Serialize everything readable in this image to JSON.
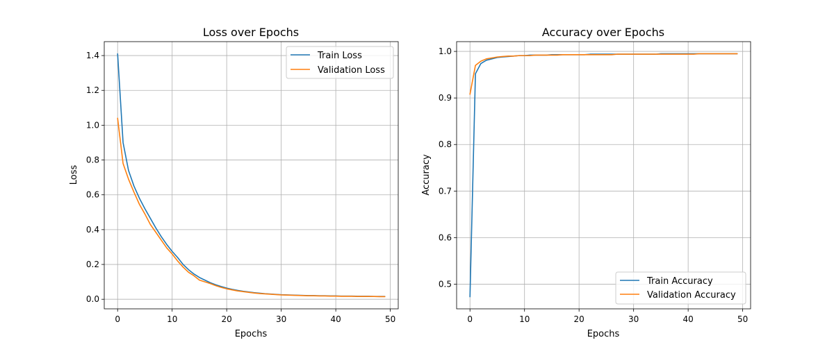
{
  "chart_data": [
    {
      "type": "line",
      "title": "Loss over Epochs",
      "xlabel": "Epochs",
      "ylabel": "Loss",
      "xlim": [
        -2.45,
        51.45
      ],
      "ylim": [
        -0.055,
        1.48
      ],
      "xticks": [
        0,
        10,
        20,
        30,
        40,
        50
      ],
      "yticks": [
        0.0,
        0.2,
        0.4,
        0.6,
        0.8,
        1.0,
        1.2,
        1.4
      ],
      "ytick_decimals": 1,
      "grid": true,
      "legend_position": "upper-right",
      "series": [
        {
          "name": "Train Loss",
          "color": "#1f77b4",
          "x": [
            0,
            1,
            2,
            3,
            4,
            5,
            6,
            7,
            8,
            9,
            10,
            11,
            12,
            13,
            14,
            15,
            16,
            17,
            18,
            19,
            20,
            21,
            22,
            23,
            24,
            25,
            26,
            27,
            28,
            29,
            30,
            31,
            32,
            33,
            34,
            35,
            36,
            37,
            38,
            39,
            40,
            41,
            42,
            43,
            44,
            45,
            46,
            47,
            48,
            49
          ],
          "y": [
            1.41,
            0.9,
            0.74,
            0.65,
            0.58,
            0.52,
            0.465,
            0.41,
            0.36,
            0.315,
            0.275,
            0.24,
            0.2,
            0.17,
            0.145,
            0.125,
            0.11,
            0.095,
            0.083,
            0.073,
            0.064,
            0.057,
            0.051,
            0.046,
            0.042,
            0.038,
            0.035,
            0.032,
            0.03,
            0.028,
            0.026,
            0.025,
            0.024,
            0.023,
            0.022,
            0.021,
            0.021,
            0.02,
            0.02,
            0.019,
            0.019,
            0.018,
            0.018,
            0.018,
            0.017,
            0.017,
            0.017,
            0.016,
            0.016,
            0.016
          ]
        },
        {
          "name": "Validation Loss",
          "color": "#ff7f0e",
          "x": [
            0,
            1,
            2,
            3,
            4,
            5,
            6,
            7,
            8,
            9,
            10,
            11,
            12,
            13,
            14,
            15,
            16,
            17,
            18,
            19,
            20,
            21,
            22,
            23,
            24,
            25,
            26,
            27,
            28,
            29,
            30,
            31,
            32,
            33,
            34,
            35,
            36,
            37,
            38,
            39,
            40,
            41,
            42,
            43,
            44,
            45,
            46,
            47,
            48,
            49
          ],
          "y": [
            1.04,
            0.78,
            0.69,
            0.615,
            0.545,
            0.49,
            0.43,
            0.385,
            0.34,
            0.295,
            0.26,
            0.22,
            0.185,
            0.155,
            0.135,
            0.11,
            0.1,
            0.09,
            0.078,
            0.068,
            0.06,
            0.054,
            0.048,
            0.044,
            0.04,
            0.036,
            0.033,
            0.031,
            0.029,
            0.027,
            0.025,
            0.024,
            0.023,
            0.022,
            0.021,
            0.02,
            0.02,
            0.019,
            0.019,
            0.018,
            0.018,
            0.017,
            0.017,
            0.017,
            0.016,
            0.016,
            0.016,
            0.016,
            0.015,
            0.015
          ]
        }
      ]
    },
    {
      "type": "line",
      "title": "Accuracy over Epochs",
      "xlabel": "Epochs",
      "ylabel": "Accuracy",
      "xlim": [
        -2.45,
        51.45
      ],
      "ylim": [
        0.447,
        1.021
      ],
      "xticks": [
        0,
        10,
        20,
        30,
        40,
        50
      ],
      "yticks": [
        0.5,
        0.6,
        0.7,
        0.8,
        0.9,
        1.0
      ],
      "ytick_decimals": 1,
      "grid": true,
      "legend_position": "lower-right",
      "series": [
        {
          "name": "Train Accuracy",
          "color": "#1f77b4",
          "x": [
            0,
            1,
            2,
            3,
            4,
            5,
            6,
            7,
            8,
            9,
            10,
            11,
            12,
            13,
            14,
            15,
            16,
            17,
            18,
            19,
            20,
            21,
            22,
            23,
            24,
            25,
            26,
            27,
            28,
            29,
            30,
            31,
            32,
            33,
            34,
            35,
            36,
            37,
            38,
            39,
            40,
            41,
            42,
            43,
            44,
            45,
            46,
            47,
            48,
            49
          ],
          "y": [
            0.473,
            0.952,
            0.974,
            0.981,
            0.984,
            0.987,
            0.988,
            0.989,
            0.99,
            0.991,
            0.991,
            0.992,
            0.992,
            0.992,
            0.992,
            0.993,
            0.993,
            0.993,
            0.993,
            0.993,
            0.993,
            0.993,
            0.994,
            0.994,
            0.994,
            0.994,
            0.994,
            0.994,
            0.994,
            0.994,
            0.994,
            0.994,
            0.994,
            0.994,
            0.994,
            0.995,
            0.995,
            0.995,
            0.995,
            0.995,
            0.995,
            0.995,
            0.995,
            0.995,
            0.995,
            0.995,
            0.995,
            0.995,
            0.995,
            0.995
          ]
        },
        {
          "name": "Validation Accuracy",
          "color": "#ff7f0e",
          "x": [
            0,
            1,
            2,
            3,
            4,
            5,
            6,
            7,
            8,
            9,
            10,
            11,
            12,
            13,
            14,
            15,
            16,
            17,
            18,
            19,
            20,
            21,
            22,
            23,
            24,
            25,
            26,
            27,
            28,
            29,
            30,
            31,
            32,
            33,
            34,
            35,
            36,
            37,
            38,
            39,
            40,
            41,
            42,
            43,
            44,
            45,
            46,
            47,
            48,
            49
          ],
          "y": [
            0.908,
            0.97,
            0.979,
            0.984,
            0.986,
            0.988,
            0.989,
            0.99,
            0.99,
            0.991,
            0.991,
            0.991,
            0.992,
            0.992,
            0.992,
            0.992,
            0.992,
            0.993,
            0.993,
            0.993,
            0.993,
            0.993,
            0.993,
            0.993,
            0.993,
            0.993,
            0.993,
            0.994,
            0.994,
            0.994,
            0.994,
            0.994,
            0.994,
            0.994,
            0.994,
            0.994,
            0.994,
            0.994,
            0.994,
            0.994,
            0.994,
            0.994,
            0.995,
            0.995,
            0.995,
            0.995,
            0.995,
            0.995,
            0.995,
            0.995
          ]
        }
      ]
    }
  ]
}
